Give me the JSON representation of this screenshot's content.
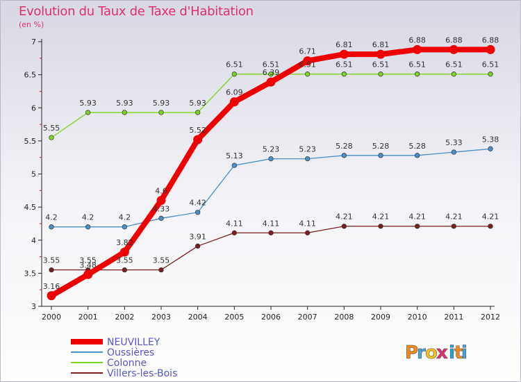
{
  "header": {
    "title": "Evolution du Taux de Taxe d'Habitation",
    "subtitle": "(en %)"
  },
  "brand": {
    "letters": [
      "P",
      "r",
      "o",
      "x",
      "i",
      "t",
      "i"
    ],
    "colors": [
      "#f08a1c",
      "#4aa3df",
      "#f0c419",
      "#e0306a",
      "#1aa8d8",
      "#f08a1c",
      "#4aa3df"
    ]
  },
  "chart_data": {
    "type": "line",
    "x": [
      "2000",
      "2001",
      "2002",
      "2003",
      "2004",
      "2005",
      "2006",
      "2007",
      "2008",
      "2009",
      "2010",
      "2011",
      "2012"
    ],
    "ylim": [
      3,
      7
    ],
    "yticks": [
      "3",
      "3.5",
      "4",
      "4.5",
      "5",
      "5.5",
      "6",
      "6.5",
      "7"
    ],
    "grid": false,
    "legend_position": "bottom-left",
    "series": [
      {
        "name": "NEUVILLEY",
        "color": "#ee0000",
        "values": [
          3.16,
          3.48,
          3.82,
          4.6,
          5.52,
          6.09,
          6.39,
          6.71,
          6.81,
          6.81,
          6.88,
          6.88,
          6.88
        ],
        "labels": [
          "3.16",
          "3.48",
          "3.82",
          "4.6",
          "5.52",
          "6.09",
          "6.39",
          "6.71",
          "6.81",
          "6.81",
          "6.88",
          "6.88",
          "6.88"
        ]
      },
      {
        "name": "Oussières",
        "color": "#4a8fc8",
        "values": [
          4.2,
          4.2,
          4.2,
          4.33,
          4.42,
          5.13,
          5.23,
          5.23,
          5.28,
          5.28,
          5.28,
          5.33,
          5.38
        ],
        "labels": [
          "4.2",
          "4.2",
          "4.2",
          "4.33",
          "4.42",
          "5.13",
          "5.23",
          "5.23",
          "5.28",
          "5.28",
          "5.28",
          "5.33",
          "5.38"
        ]
      },
      {
        "name": "Colonne",
        "color": "#7ed321",
        "values": [
          5.55,
          5.93,
          5.93,
          5.93,
          5.93,
          6.51,
          6.51,
          6.51,
          6.51,
          6.51,
          6.51,
          6.51,
          6.51
        ],
        "labels": [
          "5.55",
          "5.93",
          "5.93",
          "5.93",
          "5.93",
          "6.51",
          "6.51",
          "6.51",
          "6.51",
          "6.51",
          "6.51",
          "6.51",
          "6.51"
        ]
      },
      {
        "name": "Villers-les-Bois",
        "color": "#7a1e1e",
        "values": [
          3.55,
          3.55,
          3.55,
          3.55,
          3.91,
          4.11,
          4.11,
          4.11,
          4.21,
          4.21,
          4.21,
          4.21,
          4.21
        ],
        "labels": [
          "3.55",
          "3.55",
          "3.55",
          "3.55",
          "3.91",
          "4.11",
          "4.11",
          "4.11",
          "4.21",
          "4.21",
          "4.21",
          "4.21",
          "4.21"
        ]
      }
    ]
  }
}
